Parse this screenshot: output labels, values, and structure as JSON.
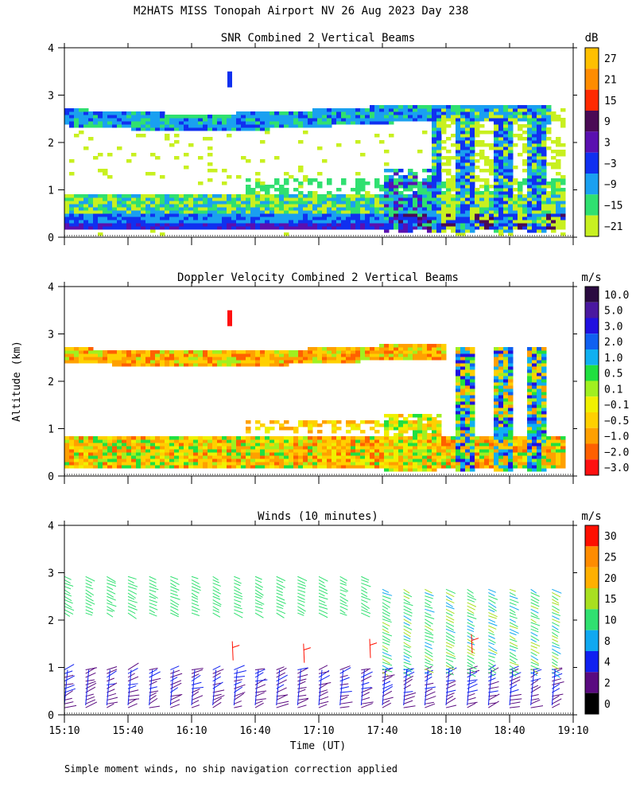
{
  "figure": {
    "title": "M2HATS MISS Tonopah Airport NV  26 Aug 2023 Day 238",
    "ylabel": "Altitude (km)",
    "xlabel": "Time (UT)",
    "footnote": "Simple moment winds, no ship navigation correction applied"
  },
  "chart_data": [
    {
      "type": "heatmap",
      "title": "SNR Combined 2 Vertical Beams",
      "xlabel": "Time (UT)",
      "ylabel": "Altitude (km)",
      "x_ticks": [
        "15:10",
        "15:40",
        "16:10",
        "16:40",
        "17:10",
        "17:40",
        "18:10",
        "18:40",
        "19:10"
      ],
      "y_ticks": [
        "0",
        "1",
        "2",
        "3",
        "4"
      ],
      "ylim": [
        0,
        4
      ],
      "colorbar": {
        "unit": "dB",
        "labels": [
          "27",
          "21",
          "15",
          "9",
          "3",
          "−3",
          "−9",
          "−15",
          "−21"
        ],
        "colors": [
          "#ffc000",
          "#ff8c00",
          "#ff2a00",
          "#4a0a55",
          "#5a10b0",
          "#1030f0",
          "#1aa0f0",
          "#30e070",
          "#c8f020"
        ]
      },
      "features": [
        {
          "name": "upper layer",
          "altitude_km": [
            2.3,
            2.75
          ],
          "time_range": [
            "15:10",
            "19:05"
          ]
        },
        {
          "name": "boundary layer",
          "altitude_km": [
            0.1,
            0.8
          ],
          "time_range": [
            "15:10",
            "19:05"
          ]
        }
      ]
    },
    {
      "type": "heatmap",
      "title": "Doppler Velocity Combined 2 Vertical Beams",
      "xlabel": "Time (UT)",
      "ylabel": "Altitude (km)",
      "x_ticks": [
        "15:10",
        "15:40",
        "16:10",
        "16:40",
        "17:10",
        "17:40",
        "18:10",
        "18:40",
        "19:10"
      ],
      "y_ticks": [
        "0",
        "1",
        "2",
        "3",
        "4"
      ],
      "ylim": [
        0,
        4
      ],
      "colorbar": {
        "unit": "m/s",
        "labels": [
          "10.0",
          "5.0",
          "3.0",
          "2.0",
          "1.0",
          "0.5",
          "0.1",
          "−0.1",
          "−0.5",
          "−1.0",
          "−2.0",
          "−3.0"
        ],
        "colors": [
          "#2a0a40",
          "#4a18a0",
          "#2010e0",
          "#1060f0",
          "#10b0f0",
          "#20e040",
          "#a0f020",
          "#f0f000",
          "#ffd000",
          "#ffa000",
          "#ff6000",
          "#ff1010"
        ]
      }
    },
    {
      "type": "scatter",
      "title": "Winds (10 minutes)",
      "xlabel": "Time (UT)",
      "ylabel": "Altitude (km)",
      "x_ticks": [
        "15:10",
        "15:40",
        "16:10",
        "16:40",
        "17:10",
        "17:40",
        "18:10",
        "18:40",
        "19:10"
      ],
      "y_ticks": [
        "0",
        "1",
        "2",
        "3",
        "4"
      ],
      "ylim": [
        0,
        4
      ],
      "colorbar": {
        "unit": "m/s",
        "labels": [
          "30",
          "25",
          "20",
          "15",
          "10",
          "8",
          "4",
          "2",
          "0"
        ],
        "colors": [
          "#ff1000",
          "#ff8c00",
          "#ffb000",
          "#a8e020",
          "#30e070",
          "#10a8f0",
          "#1020f0",
          "#5a0a80",
          "#000000"
        ]
      },
      "profile_times_min": [
        0,
        10,
        20,
        30,
        40,
        50,
        60,
        70,
        80,
        90,
        100,
        110,
        120,
        130,
        140,
        150,
        160,
        170,
        180,
        190,
        200,
        210,
        220,
        230
      ]
    }
  ]
}
